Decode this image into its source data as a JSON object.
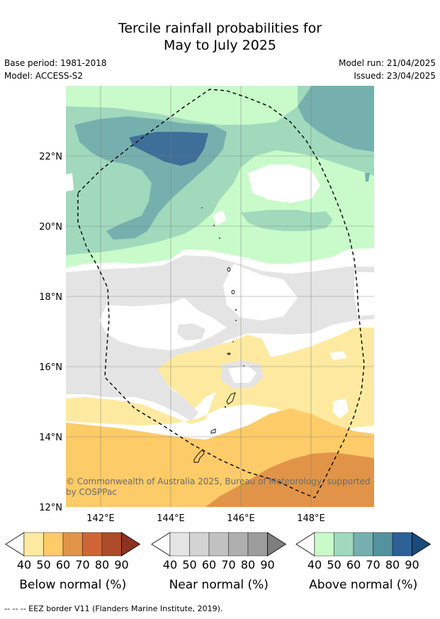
{
  "title_line1": "Tercile rainfall probabilities for",
  "title_line2": "May to July 2025",
  "base_period": "Base period: 1981-2018",
  "model": "Model: ACCESS-S2",
  "model_run": "Model run: 21/04/2025",
  "issued": "Issued: 23/04/2025",
  "lat_labels": [
    "22°N",
    "20°N",
    "18°N",
    "16°N",
    "14°N",
    "12°N"
  ],
  "lon_labels": [
    "142°E",
    "144°E",
    "146°E",
    "148°E"
  ],
  "credit": "© Commonwealth of Australia 2025, Bureau of Meteorology, supported by COSPPac",
  "footer": "--  --  -- EEZ border V11 (Flanders Marine Institute, 2019).",
  "colorbars": [
    {
      "label": "Below normal (%)",
      "ticks": [
        "40",
        "50",
        "60",
        "70",
        "80",
        "90"
      ],
      "colors": [
        "#fdeaa0",
        "#fdcb68",
        "#e19447",
        "#cf6537",
        "#ad4b2b",
        "#8c3221"
      ]
    },
    {
      "label": "Near normal (%)",
      "ticks": [
        "40",
        "50",
        "60",
        "70",
        "80",
        "90"
      ],
      "colors": [
        "#e4e4e4",
        "#d3d3d3",
        "#c1c1c1",
        "#afafaf",
        "#9c9c9c",
        "#7e7e7e"
      ]
    },
    {
      "label": "Above normal (%)",
      "ticks": [
        "40",
        "50",
        "60",
        "70",
        "80",
        "90"
      ],
      "colors": [
        "#c8fbc9",
        "#a1d9bd",
        "#76b0ae",
        "#55929f",
        "#2d6095",
        "#1a4a7c"
      ]
    }
  ]
}
